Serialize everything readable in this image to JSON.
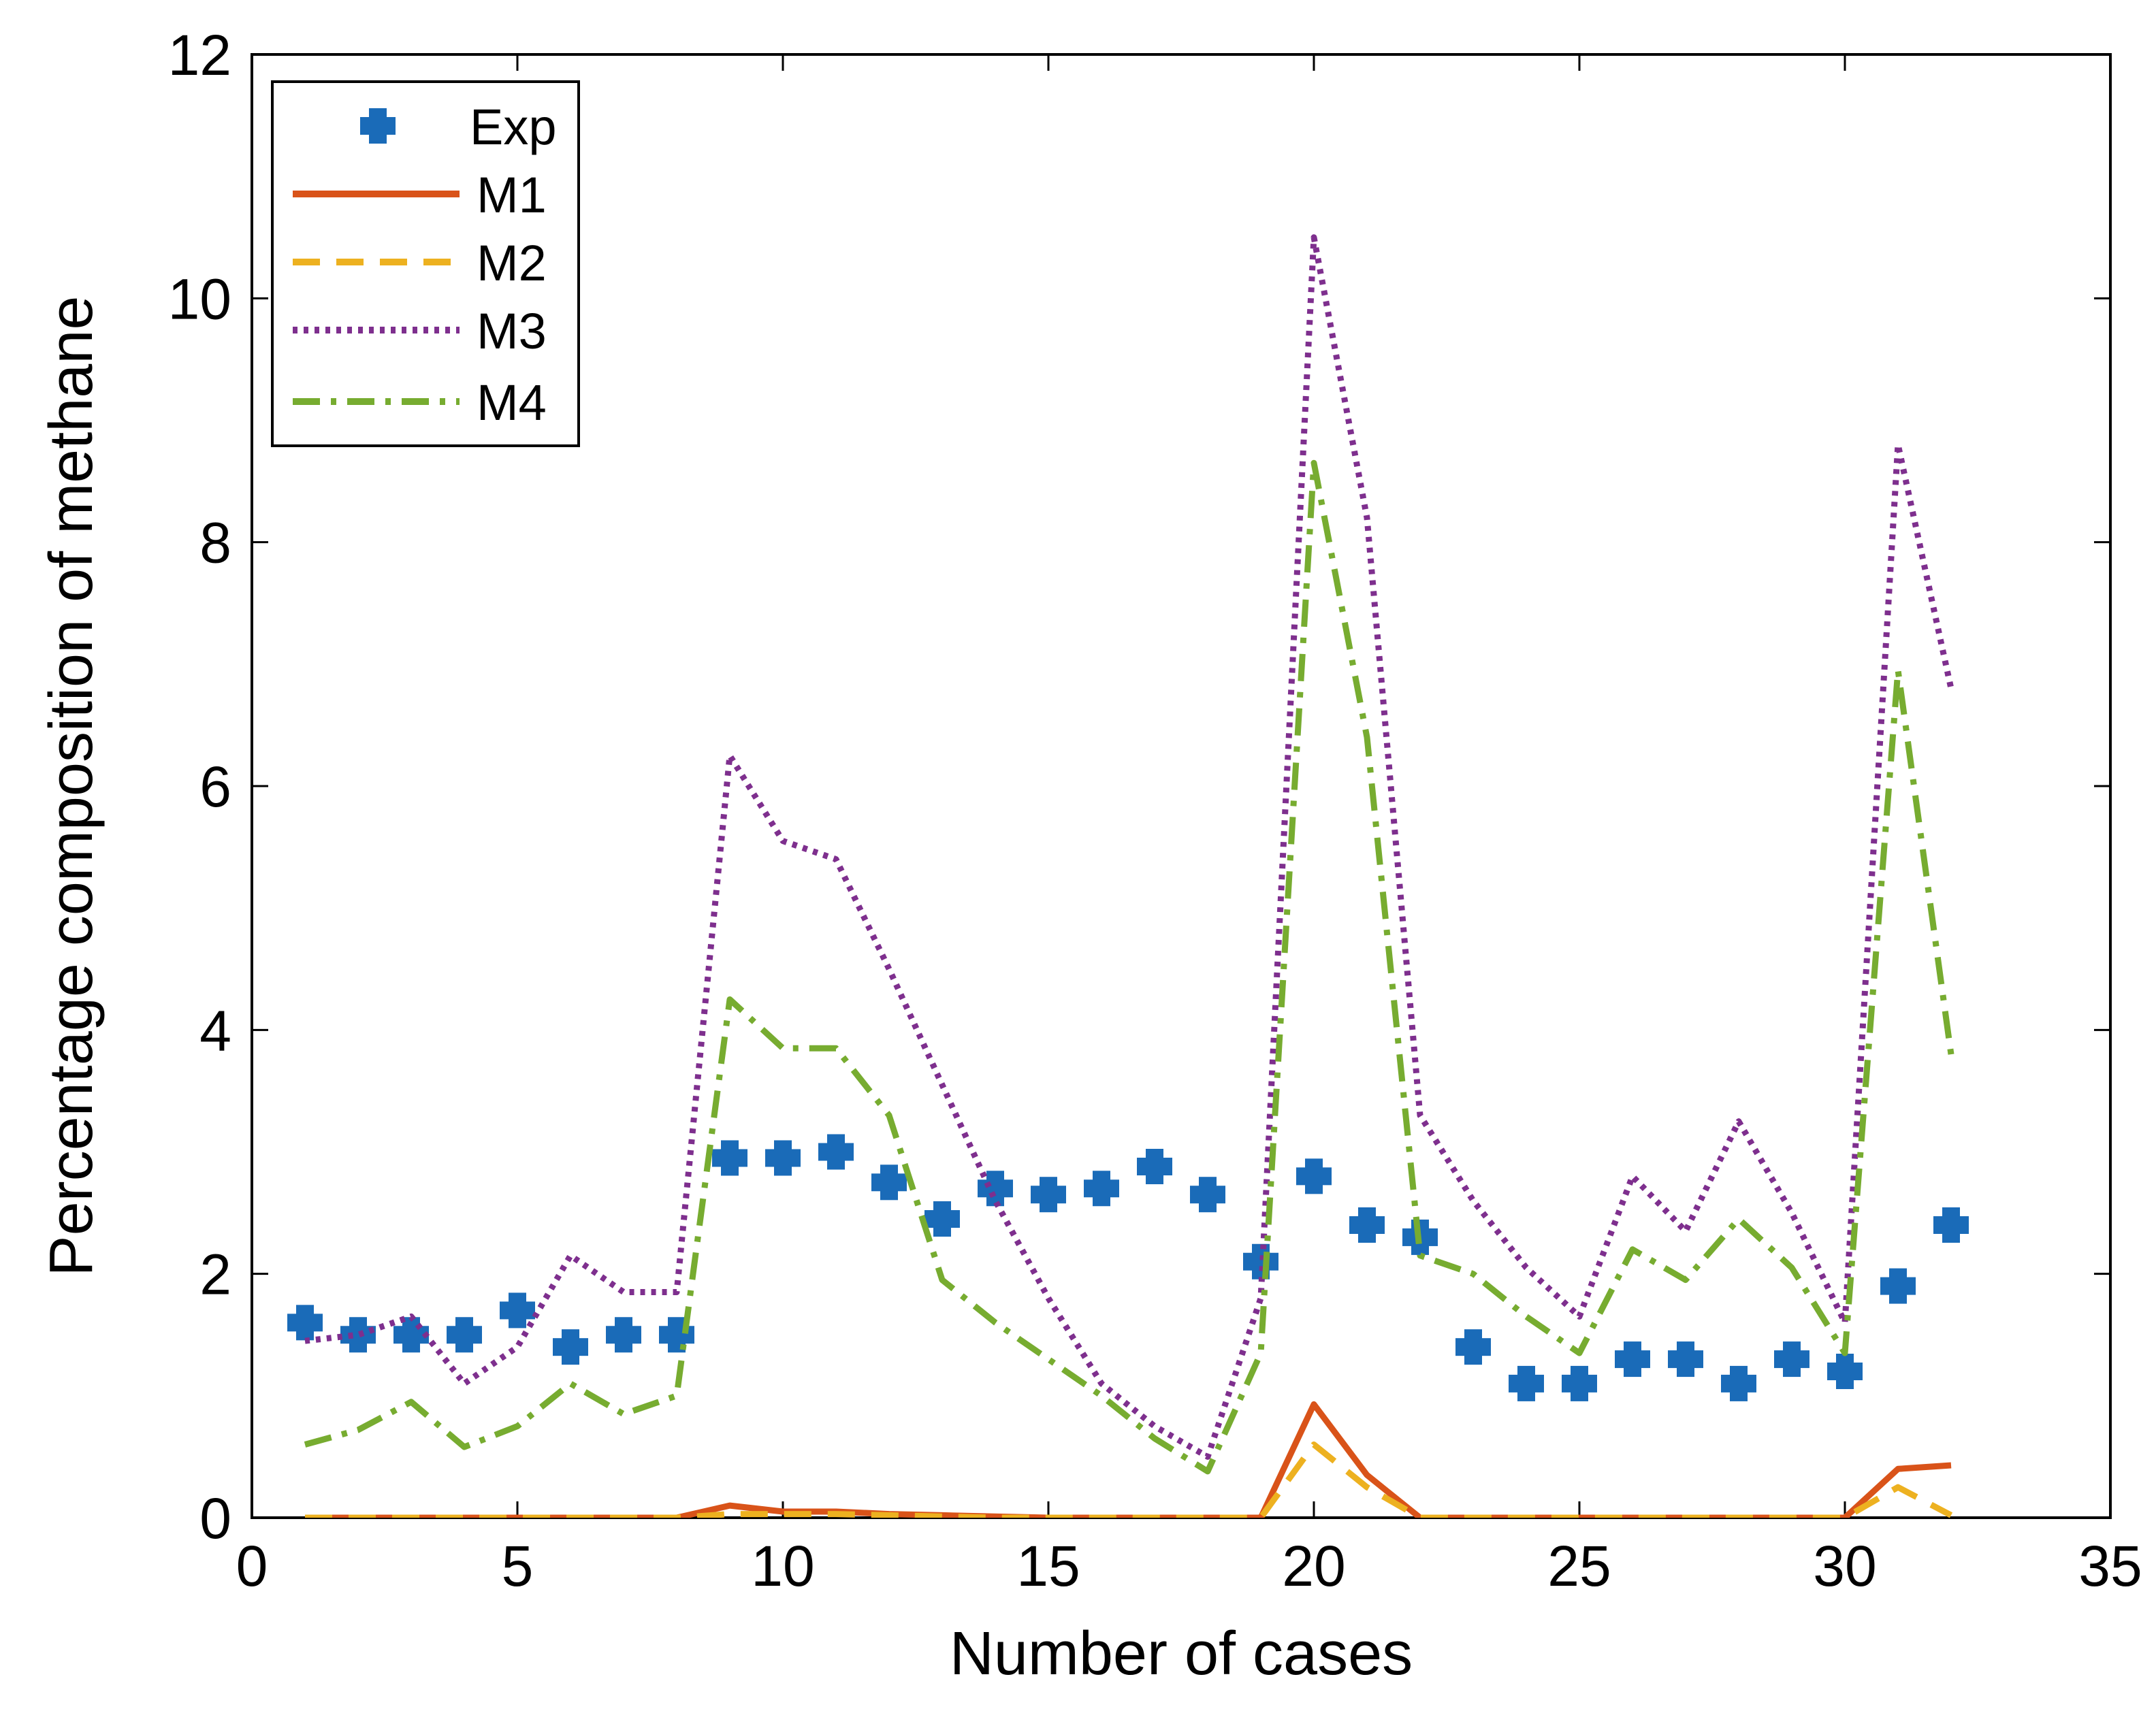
{
  "chart_data": {
    "type": "line",
    "title": "",
    "xlabel": "Number of cases",
    "ylabel": "Percentage composition of methane",
    "xlim": [
      0,
      35
    ],
    "ylim": [
      0,
      12
    ],
    "xticks": [
      0,
      5,
      10,
      15,
      20,
      25,
      30,
      35
    ],
    "yticks": [
      0,
      2,
      4,
      6,
      8,
      10,
      12
    ],
    "legend_position": "top-left",
    "x": [
      1,
      2,
      3,
      4,
      5,
      6,
      7,
      8,
      9,
      10,
      11,
      12,
      13,
      14,
      15,
      16,
      17,
      18,
      19,
      20,
      21,
      22,
      23,
      24,
      25,
      26,
      27,
      28,
      29,
      30,
      31,
      32
    ],
    "series": [
      {
        "name": "Exp",
        "style": "marker-plus",
        "color": "#1a6bb8",
        "values": [
          1.6,
          1.5,
          1.5,
          1.5,
          1.7,
          1.4,
          1.5,
          1.5,
          2.95,
          2.95,
          3.0,
          2.75,
          2.45,
          2.7,
          2.65,
          2.7,
          2.88,
          2.65,
          2.1,
          2.8,
          2.4,
          2.3,
          1.4,
          1.1,
          1.1,
          1.3,
          1.3,
          1.1,
          1.3,
          1.2,
          1.9,
          2.4
        ]
      },
      {
        "name": "M1",
        "style": "solid",
        "color": "#d95319",
        "values": [
          0,
          0,
          0,
          0,
          0,
          0,
          0,
          0,
          0.1,
          0.05,
          0.05,
          0.03,
          0.02,
          0.01,
          0,
          0,
          0,
          0,
          0,
          0.93,
          0.35,
          0,
          0,
          0,
          0,
          0,
          0,
          0,
          0,
          0,
          0.4,
          0.43
        ]
      },
      {
        "name": "M2",
        "style": "dashed",
        "color": "#edb120",
        "values": [
          0,
          0,
          0,
          0,
          0,
          0,
          0,
          0,
          0.03,
          0.03,
          0.03,
          0.02,
          0.01,
          0,
          0,
          0,
          0,
          0,
          0,
          0.6,
          0.25,
          0,
          0,
          0,
          0,
          0,
          0,
          0,
          0,
          0,
          0.25,
          0.02
        ]
      },
      {
        "name": "M3",
        "style": "dotted",
        "color": "#7e2f8e",
        "values": [
          1.45,
          1.5,
          1.65,
          1.1,
          1.4,
          2.15,
          1.85,
          1.85,
          6.25,
          5.55,
          5.4,
          4.5,
          3.55,
          2.6,
          1.8,
          1.1,
          0.75,
          0.5,
          1.8,
          10.5,
          8.2,
          3.3,
          2.6,
          2.05,
          1.65,
          2.8,
          2.35,
          3.25,
          2.5,
          1.6,
          8.8,
          6.8
        ]
      },
      {
        "name": "M4",
        "style": "dashdot",
        "color": "#77ac30",
        "values": [
          0.6,
          0.72,
          0.95,
          0.58,
          0.75,
          1.1,
          0.85,
          1.0,
          4.25,
          3.85,
          3.85,
          3.3,
          1.95,
          1.6,
          1.3,
          1.0,
          0.65,
          0.38,
          1.35,
          8.65,
          6.4,
          2.15,
          2.0,
          1.65,
          1.35,
          2.2,
          1.95,
          2.45,
          2.05,
          1.35,
          6.95,
          3.8
        ]
      }
    ]
  }
}
